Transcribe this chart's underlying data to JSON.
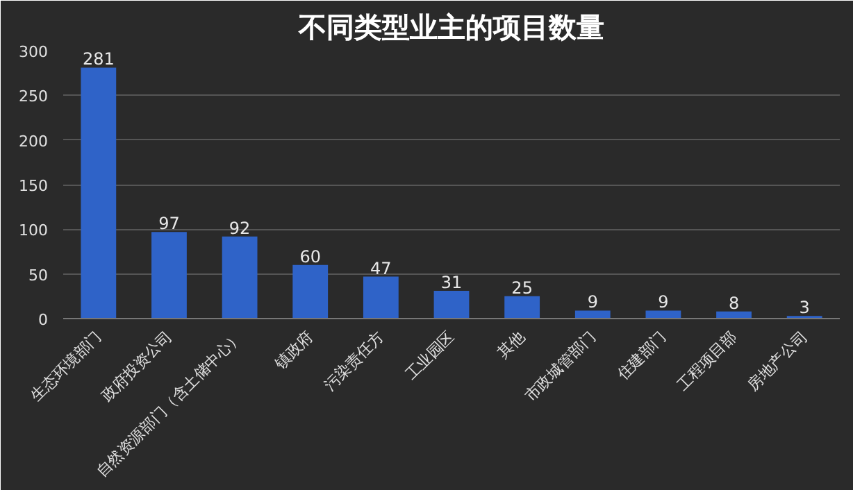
{
  "chart_data": {
    "type": "bar",
    "title": "不同类型业主的项目数量",
    "categories": [
      "生态环境部门",
      "政府投资公司",
      "自然资源部门（含土储中心）",
      "镇政府",
      "污染责任方",
      "工业园区",
      "其他",
      "市政城管部门",
      "住建部门",
      "工程项目部",
      "房地产公司"
    ],
    "values": [
      281,
      97,
      92,
      60,
      47,
      31,
      25,
      9,
      9,
      8,
      3
    ],
    "color": "#2f63c8",
    "data_labels": true,
    "ylim": [
      0,
      300
    ],
    "yticks": [
      0,
      50,
      100,
      150,
      200,
      250,
      300
    ],
    "grid": "y"
  }
}
